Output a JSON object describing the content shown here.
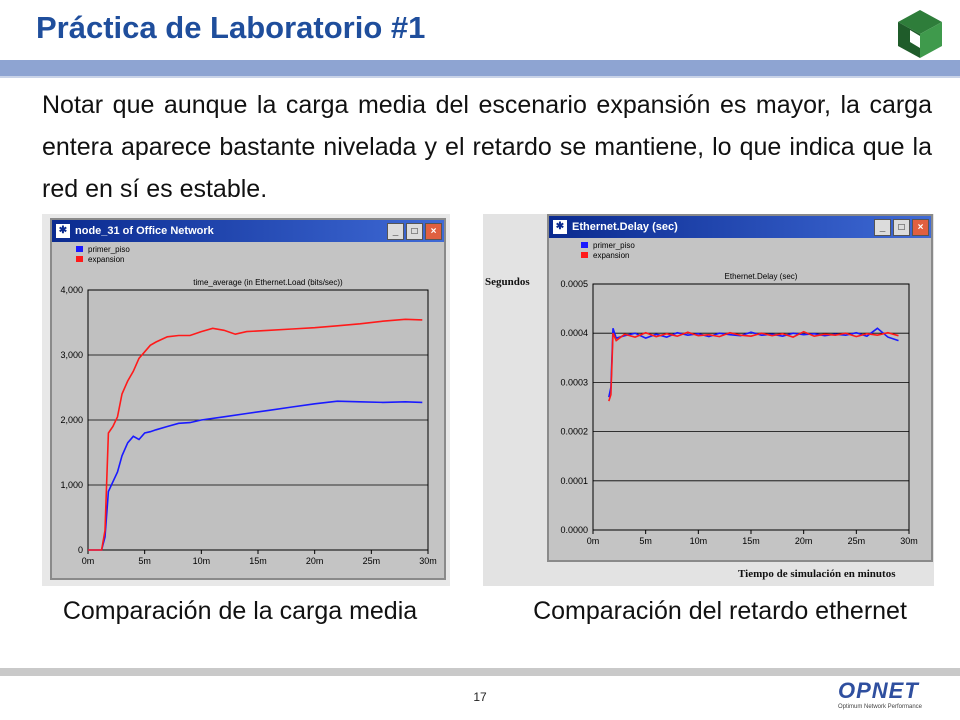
{
  "slide": {
    "title": "Práctica de Laboratorio #1",
    "body": "Notar que aunque la carga media del escenario expansión es mayor, la carga entera aparece bastante nivelada y el retardo se mantiene, lo que indica que la red en sí es estable.",
    "caption_left": "Comparación de la carga media",
    "caption_right": "Comparación del retardo ethernet",
    "page_number": "17",
    "logo_text": "OPNET",
    "logo_tagline": "Optimum Network Performance",
    "accent_color": "#1f4e9c"
  },
  "windows": {
    "left_title": "node_31 of Office Network",
    "right_title": "Ethernet.Delay (sec)",
    "minimize_glyph": "_",
    "maximize_glyph": "□",
    "close_glyph": "×"
  },
  "side_labels": {
    "y": "Segundos",
    "x": "Tiempo de simulación en minutos"
  },
  "chart_data": [
    {
      "type": "line",
      "title": "time_average (in Ethernet.Load (bits/sec))",
      "xlim": [
        0,
        30
      ],
      "ylim": [
        0,
        4000
      ],
      "x_ticks": [
        "0m",
        "5m",
        "10m",
        "15m",
        "20m",
        "25m",
        "30m"
      ],
      "y_ticks": [
        "0",
        "1,000",
        "2,000",
        "3,000",
        "4,000"
      ],
      "grid": true,
      "legend": "top-left",
      "series": [
        {
          "name": "primer_piso",
          "color": "#1a1aff",
          "x": [
            0,
            1.2,
            1.5,
            1.8,
            2.2,
            2.6,
            3.0,
            3.5,
            4.0,
            4.5,
            5.0,
            5.5,
            6.0,
            7.0,
            8.0,
            9.0,
            10.0,
            12.0,
            14.0,
            16.0,
            18.0,
            20.0,
            22.0,
            24.0,
            26.0,
            28.0,
            29.5
          ],
          "y": [
            0,
            0,
            200,
            900,
            1050,
            1200,
            1450,
            1650,
            1750,
            1700,
            1800,
            1820,
            1850,
            1900,
            1950,
            1960,
            2000,
            2050,
            2100,
            2150,
            2200,
            2250,
            2290,
            2280,
            2270,
            2280,
            2270
          ]
        },
        {
          "name": "expansion",
          "color": "#ff1a1a",
          "x": [
            0,
            1.2,
            1.5,
            1.8,
            2.2,
            2.6,
            3.0,
            3.5,
            4.0,
            4.5,
            5.0,
            5.5,
            6.0,
            7.0,
            8.0,
            9.0,
            10.0,
            11.0,
            12.0,
            13.0,
            14.0,
            16.0,
            18.0,
            20.0,
            22.0,
            24.0,
            26.0,
            28.0,
            29.5
          ],
          "y": [
            0,
            0,
            300,
            1800,
            1900,
            2050,
            2400,
            2600,
            2750,
            2950,
            3050,
            3150,
            3200,
            3280,
            3300,
            3300,
            3360,
            3410,
            3380,
            3320,
            3360,
            3380,
            3400,
            3420,
            3450,
            3480,
            3520,
            3550,
            3540
          ]
        }
      ]
    },
    {
      "type": "line",
      "title": "Ethernet.Delay (sec)",
      "xlim": [
        0,
        30
      ],
      "ylim": [
        0,
        0.0005
      ],
      "x_ticks": [
        "0m",
        "5m",
        "10m",
        "15m",
        "20m",
        "25m",
        "30m"
      ],
      "y_ticks": [
        "0.0000",
        "0.0001",
        "0.0002",
        "0.0003",
        "0.0004",
        "0.0005"
      ],
      "grid": true,
      "legend": "top-left",
      "series": [
        {
          "name": "primer_piso",
          "color": "#1a1aff",
          "x": [
            1.5,
            1.7,
            1.9,
            2.2,
            3,
            4,
            5,
            6,
            7,
            8,
            9,
            10,
            11,
            12,
            13,
            14,
            15,
            16,
            17,
            18,
            19,
            20,
            21,
            22,
            23,
            24,
            25,
            26,
            27,
            28,
            29
          ],
          "y": [
            0.00027,
            0.00029,
            0.00041,
            0.00039,
            0.000395,
            0.0004,
            0.00039,
            0.000398,
            0.000392,
            0.000401,
            0.000396,
            0.000399,
            0.000393,
            0.0004,
            0.000397,
            0.000395,
            0.000402,
            0.000396,
            0.000398,
            0.000394,
            0.0004,
            0.000397,
            0.000399,
            0.000395,
            0.000398,
            0.000396,
            0.000401,
            0.000394,
            0.00041,
            0.000392,
            0.000385
          ]
        },
        {
          "name": "expansion",
          "color": "#ff1a1a",
          "x": [
            1.5,
            1.7,
            1.9,
            2.2,
            3,
            4,
            5,
            6,
            7,
            8,
            9,
            10,
            11,
            12,
            13,
            14,
            15,
            16,
            17,
            18,
            19,
            20,
            21,
            22,
            23,
            24,
            25,
            26,
            27,
            28,
            29
          ],
          "y": [
            0.000262,
            0.000275,
            0.0004,
            0.000385,
            0.000398,
            0.000392,
            0.000401,
            0.000393,
            0.000399,
            0.000394,
            0.000402,
            0.000395,
            0.000397,
            0.000393,
            0.000401,
            0.000396,
            0.000394,
            0.0004,
            0.000395,
            0.000399,
            0.000392,
            0.000403,
            0.000394,
            0.000398,
            0.000396,
            0.0004,
            0.000393,
            0.000399,
            0.000396,
            0.000401,
            0.000395
          ]
        }
      ]
    }
  ]
}
